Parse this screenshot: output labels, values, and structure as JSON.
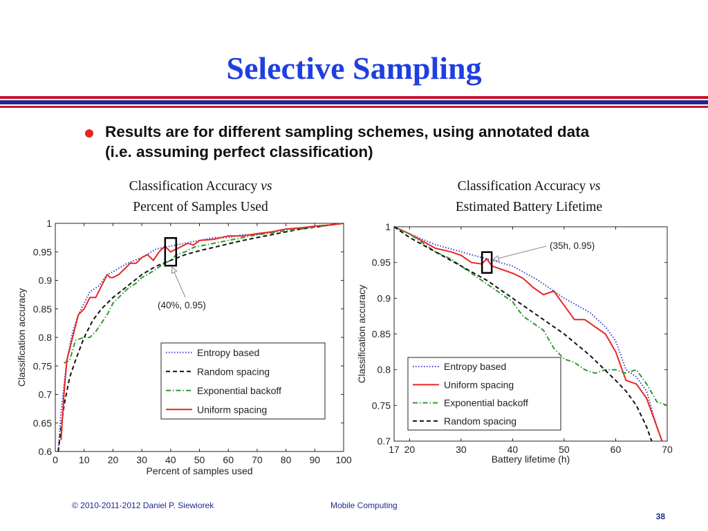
{
  "slide": {
    "title": "Selective Sampling",
    "bullet": "Results are for different sampling schemes, using annotated data (i.e. assuming perfect classification)",
    "footer_left": "© 2010-2011-2012 Daniel P. Siewiorek",
    "footer_center": "Mobile Computing",
    "page_number": "38",
    "colors": {
      "title": "#1f3fe0",
      "bullet": "#e8261f",
      "rule_red": "#c8102e",
      "rule_blue": "#1e2a8a"
    }
  },
  "captions": {
    "left": {
      "line1": "Classification Accuracy ",
      "vs": "vs",
      "line2": "Percent of Samples Used"
    },
    "right": {
      "line1": "Classification Accuracy ",
      "vs": "vs",
      "line2": "Estimated Battery Lifetime"
    }
  },
  "chart_data": [
    {
      "type": "line",
      "xlabel": "Percent of samples used",
      "ylabel": "Classification accuracy",
      "xlim": [
        0,
        100
      ],
      "ylim": [
        0.6,
        1.0
      ],
      "xticks": [
        0,
        10,
        20,
        30,
        40,
        50,
        60,
        70,
        80,
        90,
        100
      ],
      "yticks": [
        0.6,
        0.65,
        0.7,
        0.75,
        0.8,
        0.85,
        0.9,
        0.95,
        1
      ],
      "legend_position": "bottom-right",
      "annotation": {
        "text": "(40%, 0.95)",
        "x": 40,
        "y": 0.95
      },
      "series": [
        {
          "name": "Entropy based",
          "color": "#3b3bd6",
          "style": "dotted",
          "x": [
            1,
            2,
            4,
            6,
            8,
            10,
            12,
            15,
            18,
            20,
            25,
            30,
            35,
            40,
            45,
            50,
            55,
            60,
            65,
            70,
            75,
            80,
            85,
            90,
            95,
            100
          ],
          "y": [
            0.6,
            0.67,
            0.76,
            0.81,
            0.84,
            0.86,
            0.88,
            0.89,
            0.91,
            0.915,
            0.93,
            0.94,
            0.955,
            0.96,
            0.965,
            0.97,
            0.975,
            0.975,
            0.98,
            0.98,
            0.985,
            0.99,
            0.99,
            0.995,
            0.997,
            1.0
          ]
        },
        {
          "name": "Random spacing",
          "color": "#111111",
          "style": "dashed",
          "x": [
            1,
            2,
            3,
            5,
            7,
            10,
            13,
            16,
            20,
            25,
            30,
            35,
            40,
            45,
            50,
            55,
            60,
            65,
            70,
            75,
            80,
            85,
            90,
            95,
            100
          ],
          "y": [
            0.6,
            0.64,
            0.68,
            0.73,
            0.76,
            0.8,
            0.83,
            0.85,
            0.87,
            0.89,
            0.91,
            0.925,
            0.935,
            0.945,
            0.952,
            0.958,
            0.964,
            0.97,
            0.975,
            0.98,
            0.985,
            0.99,
            0.993,
            0.997,
            1.0
          ]
        },
        {
          "name": "Exponential backoff",
          "color": "#2e9a2e",
          "style": "dashdot",
          "x": [
            3,
            5,
            7,
            10,
            12,
            14,
            16,
            18,
            20,
            22,
            25,
            28,
            30,
            32,
            35,
            38,
            40,
            42,
            45,
            48,
            50,
            52,
            55,
            58,
            60,
            65,
            70,
            75,
            80,
            85,
            90,
            95,
            100
          ],
          "y": [
            0.755,
            0.76,
            0.795,
            0.8,
            0.8,
            0.81,
            0.825,
            0.84,
            0.86,
            0.87,
            0.885,
            0.895,
            0.905,
            0.91,
            0.92,
            0.93,
            0.935,
            0.945,
            0.95,
            0.958,
            0.96,
            0.962,
            0.965,
            0.968,
            0.97,
            0.975,
            0.98,
            0.983,
            0.987,
            0.99,
            0.993,
            0.997,
            1.0
          ]
        },
        {
          "name": "Uniform spacing",
          "color": "#e8261f",
          "style": "solid",
          "x": [
            2,
            3,
            4,
            6,
            8,
            10,
            12,
            14,
            16,
            18,
            19,
            20,
            22,
            24,
            26,
            28,
            30,
            32,
            34,
            36,
            38,
            40,
            42,
            44,
            46,
            48,
            50,
            55,
            60,
            65,
            70,
            75,
            80,
            85,
            90,
            95,
            100
          ],
          "y": [
            0.62,
            0.7,
            0.76,
            0.8,
            0.84,
            0.85,
            0.87,
            0.87,
            0.89,
            0.91,
            0.905,
            0.905,
            0.91,
            0.92,
            0.93,
            0.93,
            0.94,
            0.945,
            0.935,
            0.95,
            0.96,
            0.95,
            0.955,
            0.96,
            0.965,
            0.962,
            0.97,
            0.972,
            0.978,
            0.978,
            0.982,
            0.985,
            0.99,
            0.992,
            0.995,
            0.997,
            1.0
          ]
        }
      ]
    },
    {
      "type": "line",
      "xlabel": "Battery lifetime (h)",
      "ylabel": "Classification accuracy",
      "xlim": [
        17,
        70
      ],
      "ylim": [
        0.7,
        1.0
      ],
      "xticks": [
        17,
        20,
        30,
        40,
        50,
        60,
        70
      ],
      "yticks": [
        0.7,
        0.75,
        0.8,
        0.85,
        0.9,
        0.95,
        1
      ],
      "legend_position": "bottom-left",
      "annotation": {
        "text": "(35h, 0.95)",
        "x": 35,
        "y": 0.95
      },
      "series": [
        {
          "name": "Entropy based",
          "color": "#3b3bd6",
          "style": "dotted",
          "x": [
            17,
            20,
            25,
            30,
            35,
            40,
            45,
            50,
            55,
            58,
            60,
            62,
            64,
            66,
            68,
            69
          ],
          "y": [
            1.0,
            0.99,
            0.975,
            0.965,
            0.955,
            0.945,
            0.925,
            0.9,
            0.88,
            0.86,
            0.84,
            0.8,
            0.79,
            0.77,
            0.72,
            0.7
          ]
        },
        {
          "name": "Uniform spacing",
          "color": "#e8261f",
          "style": "solid",
          "x": [
            17,
            20,
            25,
            28,
            30,
            32,
            34,
            35,
            36,
            38,
            40,
            42,
            44,
            46,
            48,
            50,
            52,
            54,
            56,
            58,
            60,
            62,
            64,
            66,
            68,
            69
          ],
          "y": [
            1.0,
            0.99,
            0.97,
            0.965,
            0.96,
            0.95,
            0.948,
            0.955,
            0.945,
            0.94,
            0.935,
            0.928,
            0.915,
            0.905,
            0.91,
            0.89,
            0.87,
            0.87,
            0.86,
            0.85,
            0.825,
            0.785,
            0.78,
            0.76,
            0.72,
            0.7
          ]
        },
        {
          "name": "Exponential backoff",
          "color": "#2e9a2e",
          "style": "dashdot",
          "x": [
            17,
            20,
            25,
            28,
            30,
            32,
            35,
            38,
            40,
            42,
            44,
            46,
            48,
            50,
            52,
            54,
            56,
            58,
            60,
            62,
            64,
            66,
            68,
            70
          ],
          "y": [
            1.0,
            0.99,
            0.965,
            0.955,
            0.945,
            0.935,
            0.92,
            0.905,
            0.895,
            0.875,
            0.865,
            0.855,
            0.83,
            0.815,
            0.81,
            0.8,
            0.795,
            0.8,
            0.8,
            0.795,
            0.8,
            0.78,
            0.755,
            0.75
          ]
        },
        {
          "name": "Random spacing",
          "color": "#111111",
          "style": "dashed",
          "x": [
            17,
            20,
            25,
            30,
            35,
            40,
            45,
            50,
            55,
            60,
            62,
            64,
            66,
            67
          ],
          "y": [
            1.0,
            0.985,
            0.965,
            0.945,
            0.925,
            0.9,
            0.875,
            0.85,
            0.82,
            0.785,
            0.77,
            0.75,
            0.72,
            0.7
          ]
        }
      ]
    }
  ]
}
